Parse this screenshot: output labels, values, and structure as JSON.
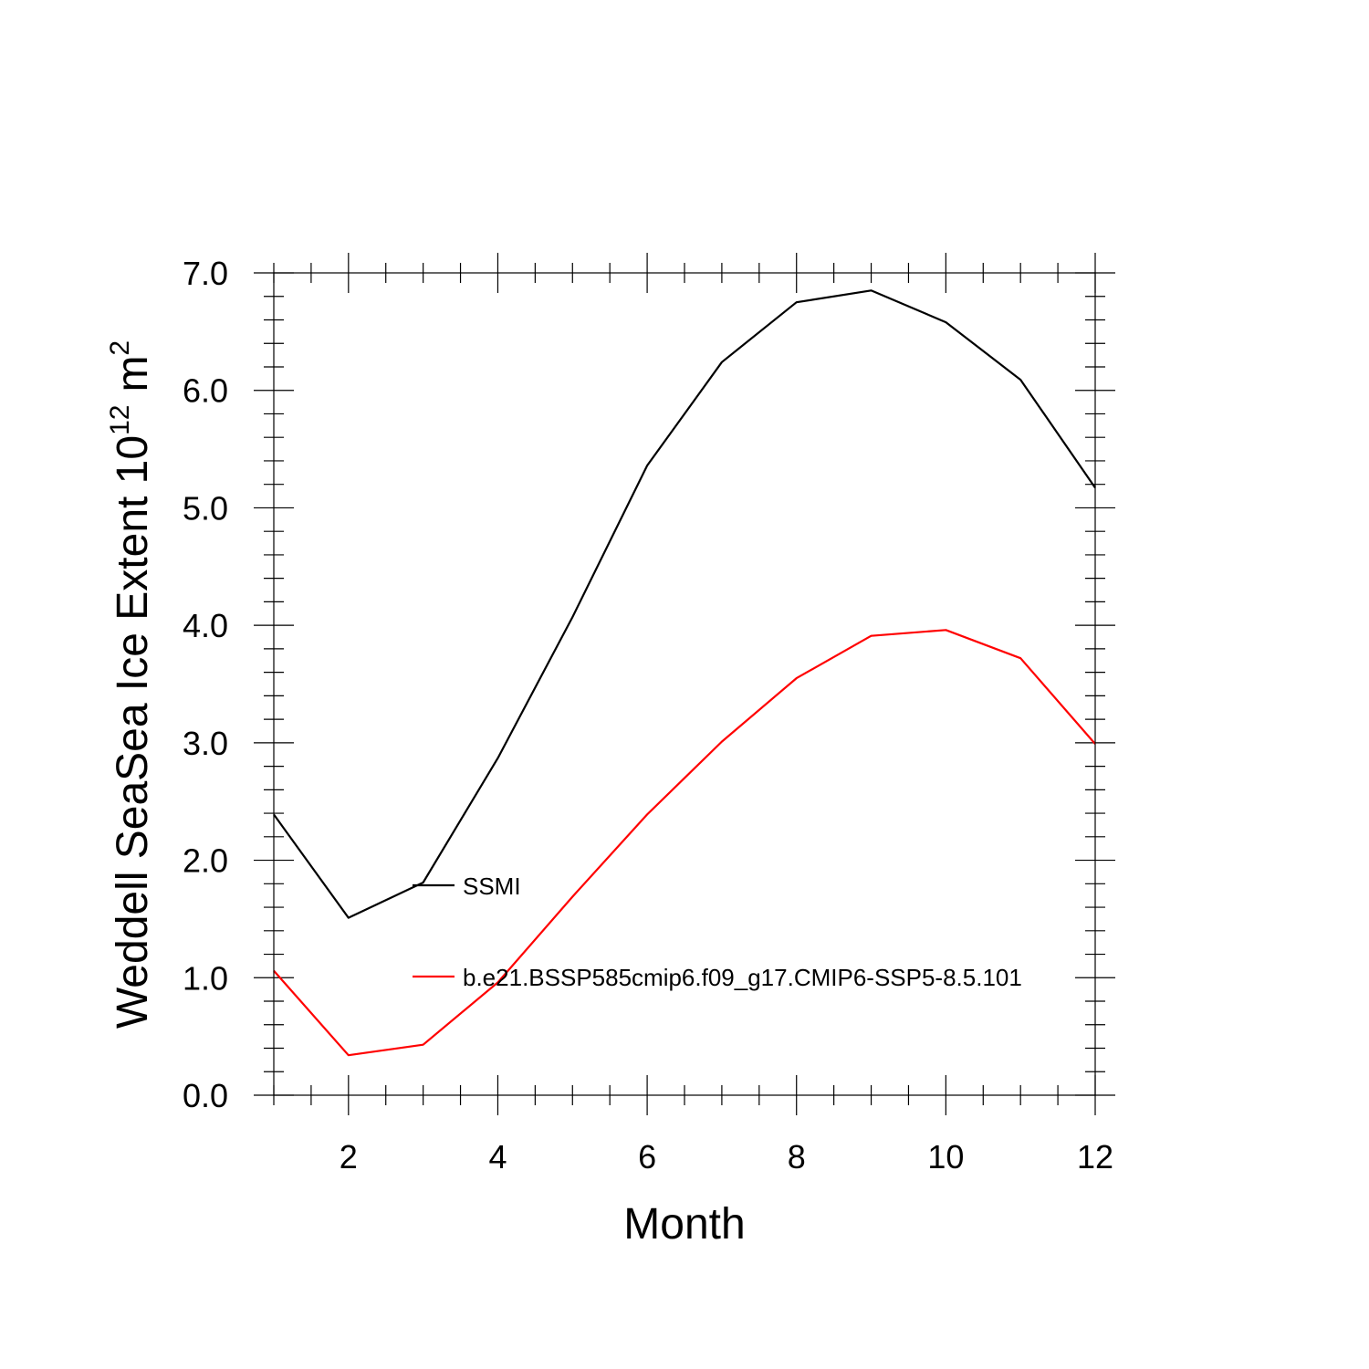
{
  "chart_data": {
    "type": "line",
    "title": "",
    "xlabel": "Month",
    "ylabel": "Weddell SeaSea Ice Extent 10",
    "ylabel_exponent": "12",
    "ylabel_unit": "m",
    "ylabel_unit_exponent": "2",
    "xlim": [
      1,
      12
    ],
    "ylim": [
      0,
      7
    ],
    "x_ticks": [
      2,
      4,
      6,
      8,
      10,
      12
    ],
    "x_tick_labels": [
      "2",
      "4",
      "6",
      "8",
      "10",
      "12"
    ],
    "y_ticks": [
      0,
      1,
      2,
      3,
      4,
      5,
      6,
      7
    ],
    "y_tick_labels": [
      "0.0",
      "1.0",
      "2.0",
      "3.0",
      "4.0",
      "5.0",
      "6.0",
      "7.0"
    ],
    "grid": false,
    "legend_position": "inside-center",
    "x": [
      1,
      2,
      3,
      4,
      5,
      6,
      7,
      8,
      9,
      10,
      11,
      12
    ],
    "series": [
      {
        "name": "SSMI",
        "color": "#000000",
        "values": [
          2.39,
          1.51,
          1.81,
          2.87,
          4.07,
          5.36,
          6.24,
          6.75,
          6.85,
          6.58,
          6.09,
          5.17
        ]
      },
      {
        "name": "b.e21.BSSP585cmip6.f09_g17.CMIP6-SSP5-8.5.101",
        "color": "#ff0000",
        "values": [
          1.06,
          0.34,
          0.43,
          0.96,
          1.69,
          2.39,
          3.01,
          3.55,
          3.91,
          3.96,
          3.72,
          2.99
        ]
      }
    ]
  }
}
